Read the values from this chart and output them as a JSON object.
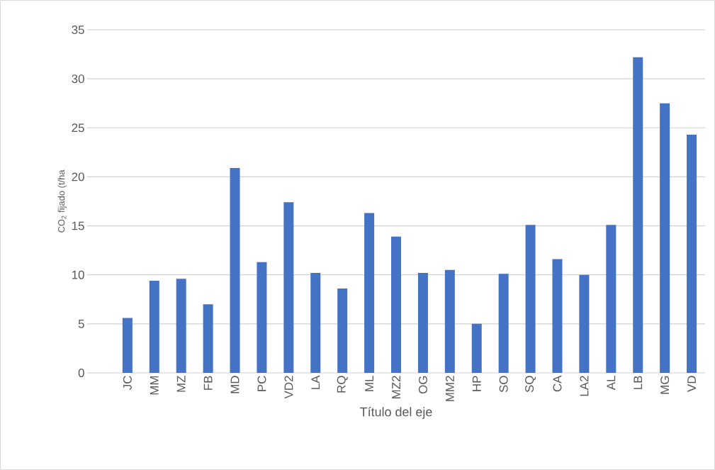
{
  "chart_data": {
    "type": "bar",
    "xlabel": "Título del eje",
    "ylabel": "CO$_{2}$ fijado (t/ha",
    "categories": [
      null,
      "JC",
      "MM",
      "MZ",
      "FB",
      "MD",
      "PC",
      "VD2",
      "LA",
      "RQ",
      "ML",
      "MZ2",
      "OG",
      "MM2",
      "HP",
      "SO",
      "SQ",
      "CA",
      "LA2",
      "AL",
      "LB",
      "MG",
      "VD"
    ],
    "values": [
      null,
      5.6,
      9.4,
      9.6,
      7.0,
      20.9,
      11.3,
      17.4,
      10.2,
      8.6,
      16.3,
      13.9,
      10.2,
      10.5,
      5.0,
      10.1,
      15.1,
      11.6,
      10.0,
      15.1,
      32.2,
      27.5,
      24.3
    ],
    "color": "#4472c4",
    "ylim": [
      0,
      35
    ],
    "yticks": [
      0,
      5,
      10,
      15,
      20,
      25,
      30,
      35
    ],
    "grid": "y"
  }
}
